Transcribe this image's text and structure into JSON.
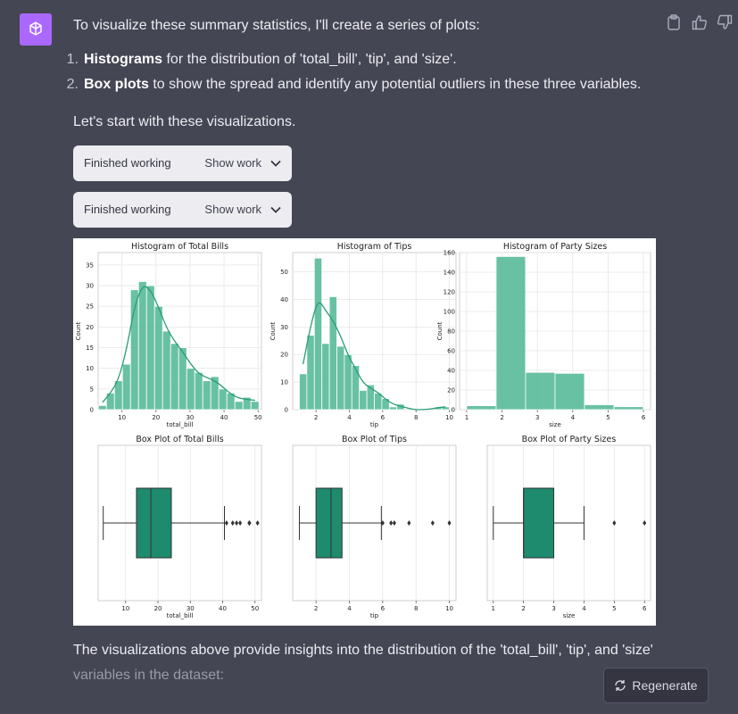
{
  "message": {
    "intro": "To visualize these summary statistics, I'll create a series of plots:",
    "list": [
      {
        "num": "1.",
        "bold": "Histograms",
        "rest": " for the distribution of 'total_bill', 'tip', and 'size'."
      },
      {
        "num": "2.",
        "bold": "Box plots",
        "rest": " to show the spread and identify any potential outliers in these three variables."
      }
    ],
    "lets": "Let's start with these visualizations.",
    "work_blocks": [
      {
        "label": "Finished working",
        "show": "Show work"
      },
      {
        "label": "Finished working",
        "show": "Show work"
      }
    ],
    "outro_1": "The visualizations above provide insights into the distribution of the 'total_bill', 'tip', and 'size'",
    "outro_2": "variables in the dataset:"
  },
  "regenerate_label": "Regenerate",
  "icons": [
    "openai-logo-icon",
    "clipboard-icon",
    "thumbs-up-icon",
    "thumbs-down-icon",
    "chevron-down-icon",
    "regenerate-icon"
  ],
  "colors": {
    "avatar": "#ab68ff",
    "bar": "#4fb694",
    "box": "#1e8a6e",
    "kde": "#2a9d73"
  },
  "chart_data": [
    {
      "type": "bar",
      "title": "Histogram of Total Bills",
      "xlabel": "total_bill",
      "ylabel": "Count",
      "xlim": [
        3,
        51
      ],
      "ylim": [
        0,
        38
      ],
      "xticks": [
        10,
        20,
        30,
        40,
        50
      ],
      "yticks": [
        0,
        5,
        10,
        15,
        20,
        25,
        30,
        35
      ],
      "bin_start": 3.07,
      "bin_width": 2.36,
      "values": [
        1,
        4,
        7,
        11,
        29,
        31,
        30,
        25,
        19,
        16,
        15,
        10,
        9,
        7,
        8,
        5,
        4,
        2,
        3,
        2
      ],
      "kde": true
    },
    {
      "type": "bar",
      "title": "Histogram of Tips",
      "xlabel": "tip",
      "ylabel": "Count",
      "xlim": [
        0.6,
        10.4
      ],
      "ylim": [
        0,
        57
      ],
      "xticks": [
        2,
        4,
        6,
        8,
        10
      ],
      "yticks": [
        0,
        10,
        20,
        30,
        40,
        50
      ],
      "bin_start": 1.0,
      "bin_width": 0.45,
      "values": [
        13,
        27,
        55,
        24,
        41,
        23,
        20,
        16,
        7,
        9,
        6,
        4,
        1,
        2,
        0,
        0,
        0,
        0,
        1,
        1
      ],
      "kde": true
    },
    {
      "type": "bar",
      "title": "Histogram of Party Sizes",
      "xlabel": "size",
      "ylabel": "Count",
      "xlim": [
        0.8,
        6.2
      ],
      "ylim": [
        0,
        160
      ],
      "xticks": [
        1,
        2,
        3,
        4,
        5,
        6
      ],
      "yticks": [
        0,
        20,
        40,
        60,
        80,
        100,
        120,
        140,
        160
      ],
      "bin_start": 1,
      "bin_width": 0.833,
      "values": [
        4,
        156,
        38,
        37,
        5,
        3
      ]
    },
    {
      "type": "box",
      "title": "Box Plot of Total Bills",
      "xlabel": "total_bill",
      "xlim": [
        1.5,
        52
      ],
      "xticks": [
        10,
        20,
        30,
        40,
        50
      ],
      "min": 3.07,
      "q1": 13.35,
      "median": 17.8,
      "q3": 24.13,
      "max": 40.55,
      "outliers": [
        41.2,
        43.1,
        44.3,
        45.4,
        48.2,
        48.3,
        50.8
      ]
    },
    {
      "type": "box",
      "title": "Box Plot of Tips",
      "xlabel": "tip",
      "xlim": [
        0.6,
        10.4
      ],
      "xticks": [
        2,
        4,
        6,
        8,
        10
      ],
      "min": 1.0,
      "q1": 2.0,
      "median": 2.9,
      "q3": 3.56,
      "max": 5.92,
      "outliers": [
        6.0,
        6.5,
        6.7,
        7.58,
        9.0,
        10.0
      ]
    },
    {
      "type": "box",
      "title": "Box Plot of Party Sizes",
      "xlabel": "size",
      "xlim": [
        0.8,
        6.2
      ],
      "xticks": [
        1,
        2,
        3,
        4,
        5,
        6
      ],
      "min": 1,
      "q1": 2,
      "median": 2,
      "q3": 3,
      "max": 4,
      "outliers": [
        5,
        6
      ]
    }
  ]
}
